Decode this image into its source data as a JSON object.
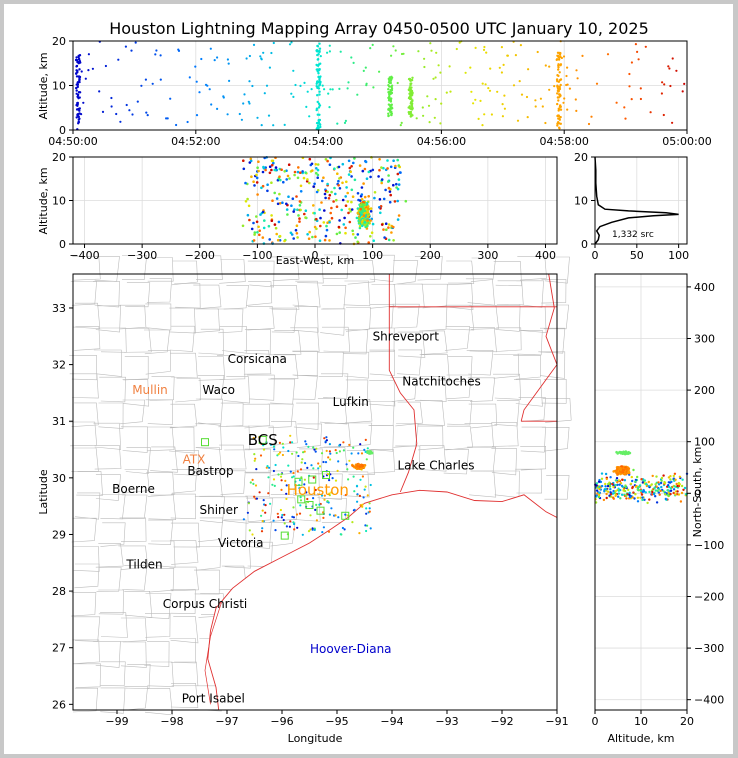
{
  "title": "Houston Lightning Mapping Array 0450-0500 UTC January 10, 2025",
  "chart_data": [
    {
      "type": "scatter",
      "id": "altitude-time",
      "ylabel": "Altitude, km",
      "xlabel": "",
      "xlim": [
        "04:50:00",
        "05:00:00"
      ],
      "ylim": [
        0,
        20
      ],
      "xtick_labels": [
        "04:50:00",
        "04:52:00",
        "04:54:00",
        "04:56:00",
        "04:58:00",
        "05:00:00"
      ],
      "ytick_labels": [
        "0",
        "10",
        "20"
      ],
      "grid": true,
      "color_by": "time",
      "source_bursts": [
        {
          "time": "04:50:05",
          "alt_range": [
            0,
            17
          ]
        },
        {
          "time": "04:54:00",
          "alt_range": [
            0,
            20
          ]
        },
        {
          "time": "04:55:10",
          "alt_range": [
            3,
            12
          ]
        },
        {
          "time": "04:55:30",
          "alt_range": [
            3,
            12
          ]
        },
        {
          "time": "04:57:55",
          "alt_range": [
            0,
            18
          ]
        }
      ]
    },
    {
      "type": "scatter",
      "id": "altitude-eastwest",
      "xlabel": "East-West, km",
      "ylabel": "Altitude, km",
      "xlim": [
        -420,
        420
      ],
      "ylim": [
        0,
        20
      ],
      "xtick_labels": [
        "−400",
        "−300",
        "−200",
        "−100",
        "0",
        "100",
        "200",
        "300",
        "400"
      ],
      "ytick_labels": [
        "0",
        "10",
        "20"
      ],
      "grid": true
    },
    {
      "type": "line",
      "id": "altitude-histogram",
      "xlim": [
        0,
        110
      ],
      "ylim": [
        0,
        20
      ],
      "xtick_labels": [
        "0",
        "50",
        "100"
      ],
      "ytick_labels": [
        "0",
        "10",
        "20"
      ],
      "annotation": "1,332 src",
      "profile": [
        [
          0,
          0
        ],
        [
          4,
          1
        ],
        [
          5,
          2
        ],
        [
          2,
          3
        ],
        [
          6,
          4
        ],
        [
          20,
          5
        ],
        [
          40,
          6
        ],
        [
          70,
          6.5
        ],
        [
          100,
          6.8
        ],
        [
          85,
          7.2
        ],
        [
          40,
          7.6
        ],
        [
          12,
          8
        ],
        [
          4,
          9
        ],
        [
          2,
          11
        ],
        [
          1,
          14
        ],
        [
          1,
          17
        ],
        [
          0,
          20
        ]
      ]
    },
    {
      "type": "scatter",
      "id": "plan-view-map",
      "xlabel": "Longitude",
      "ylabel": "Latitude",
      "xlim": [
        -99.8,
        -91
      ],
      "ylim": [
        25.9,
        33.6
      ],
      "xtick_labels": [
        "−99",
        "−98",
        "−97",
        "−96",
        "−95",
        "−94",
        "−93",
        "−92",
        "−91"
      ],
      "ytick_labels": [
        "26",
        "27",
        "28",
        "29",
        "30",
        "31",
        "32",
        "33"
      ],
      "cities": [
        {
          "name": "Shreveport",
          "lon": -93.75,
          "lat": 32.5,
          "color": "#000000"
        },
        {
          "name": "Corsicana",
          "lon": -96.45,
          "lat": 32.1,
          "color": "#000000"
        },
        {
          "name": "Natchitoches",
          "lon": -93.1,
          "lat": 31.7,
          "color": "#000000"
        },
        {
          "name": "Mullin",
          "lon": -98.4,
          "lat": 31.55,
          "color": "#f08040"
        },
        {
          "name": "Waco",
          "lon": -97.15,
          "lat": 31.55,
          "color": "#000000"
        },
        {
          "name": "Lufkin",
          "lon": -94.75,
          "lat": 31.34,
          "color": "#000000"
        },
        {
          "name": "BCS",
          "lon": -96.35,
          "lat": 30.65,
          "color": "#000000"
        },
        {
          "name": "ATX",
          "lon": -97.6,
          "lat": 30.32,
          "color": "#f08040"
        },
        {
          "name": "Bastrop",
          "lon": -97.3,
          "lat": 30.12,
          "color": "#000000"
        },
        {
          "name": "Lake Charles",
          "lon": -93.2,
          "lat": 30.22,
          "color": "#000000"
        },
        {
          "name": "Boerne",
          "lon": -98.7,
          "lat": 29.8,
          "color": "#000000"
        },
        {
          "name": "Houston",
          "lon": -95.35,
          "lat": 29.77,
          "color": "#ff9900"
        },
        {
          "name": "Shiner",
          "lon": -97.15,
          "lat": 29.43,
          "color": "#000000"
        },
        {
          "name": "Victoria",
          "lon": -96.75,
          "lat": 28.85,
          "color": "#000000"
        },
        {
          "name": "Tilden",
          "lon": -98.5,
          "lat": 28.47,
          "color": "#000000"
        },
        {
          "name": "Corpus Christi",
          "lon": -97.4,
          "lat": 27.77,
          "color": "#000000"
        },
        {
          "name": "Hoover-Diana",
          "lon": -94.75,
          "lat": 26.98,
          "color": "#0000cc"
        },
        {
          "name": "Port Isabel",
          "lon": -97.25,
          "lat": 26.1,
          "color": "#000000"
        }
      ],
      "stations": [
        {
          "lon": -97.4,
          "lat": 30.63
        },
        {
          "lon": -96.35,
          "lat": 30.67
        },
        {
          "lon": -95.7,
          "lat": 29.93
        },
        {
          "lon": -95.45,
          "lat": 29.97
        },
        {
          "lon": -95.2,
          "lat": 30.05
        },
        {
          "lon": -95.65,
          "lat": 29.62
        },
        {
          "lon": -95.5,
          "lat": 29.52
        },
        {
          "lon": -95.3,
          "lat": 29.42
        },
        {
          "lon": -94.85,
          "lat": 29.33
        },
        {
          "lon": -95.95,
          "lat": 28.98
        }
      ]
    },
    {
      "type": "scatter",
      "id": "northsouth-altitude",
      "xlabel": "Altitude, km",
      "ylabel": "North-South, km",
      "xlim": [
        0,
        20
      ],
      "ylim": [
        -420,
        425
      ],
      "xtick_labels": [
        "0",
        "10",
        "20"
      ],
      "ytick_labels": [
        "−400",
        "−300",
        "−200",
        "−100",
        "0",
        "100",
        "200",
        "300",
        "400"
      ]
    }
  ]
}
